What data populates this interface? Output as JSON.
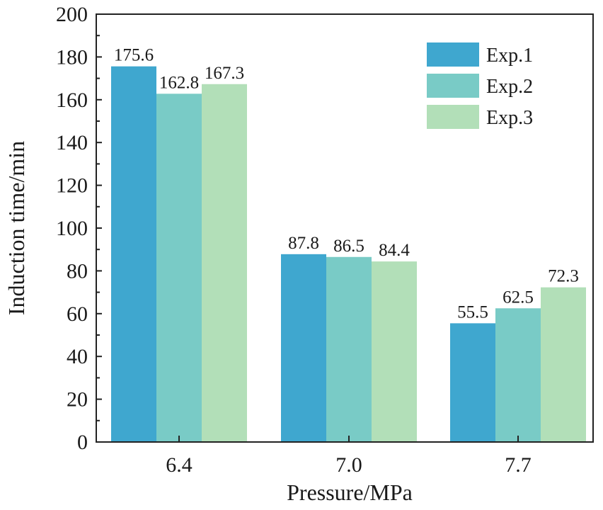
{
  "chart_data": {
    "type": "bar",
    "categories": [
      "6.4",
      "7.0",
      "7.7"
    ],
    "series": [
      {
        "name": "Exp.1",
        "values": [
          175.6,
          87.8,
          55.5
        ],
        "color": "#3fa7cf"
      },
      {
        "name": "Exp.2",
        "values": [
          162.8,
          86.5,
          62.5
        ],
        "color": "#79cbc6"
      },
      {
        "name": "Exp.3",
        "values": [
          167.3,
          84.4,
          72.3
        ],
        "color": "#b2dfb8"
      }
    ],
    "data_labels": [
      [
        "175.6",
        "87.8",
        "55.5"
      ],
      [
        "162.8",
        "86.5",
        "62.5"
      ],
      [
        "167.3",
        "84.4",
        "72.3"
      ]
    ],
    "xlabel": "Pressure/MPa",
    "ylabel": "Induction time/min",
    "ylim": [
      0,
      200
    ],
    "yticks": [
      "0",
      "20",
      "40",
      "60",
      "80",
      "100",
      "120",
      "140",
      "160",
      "180",
      "200"
    ],
    "legend_position": "top-right",
    "grid": false
  }
}
